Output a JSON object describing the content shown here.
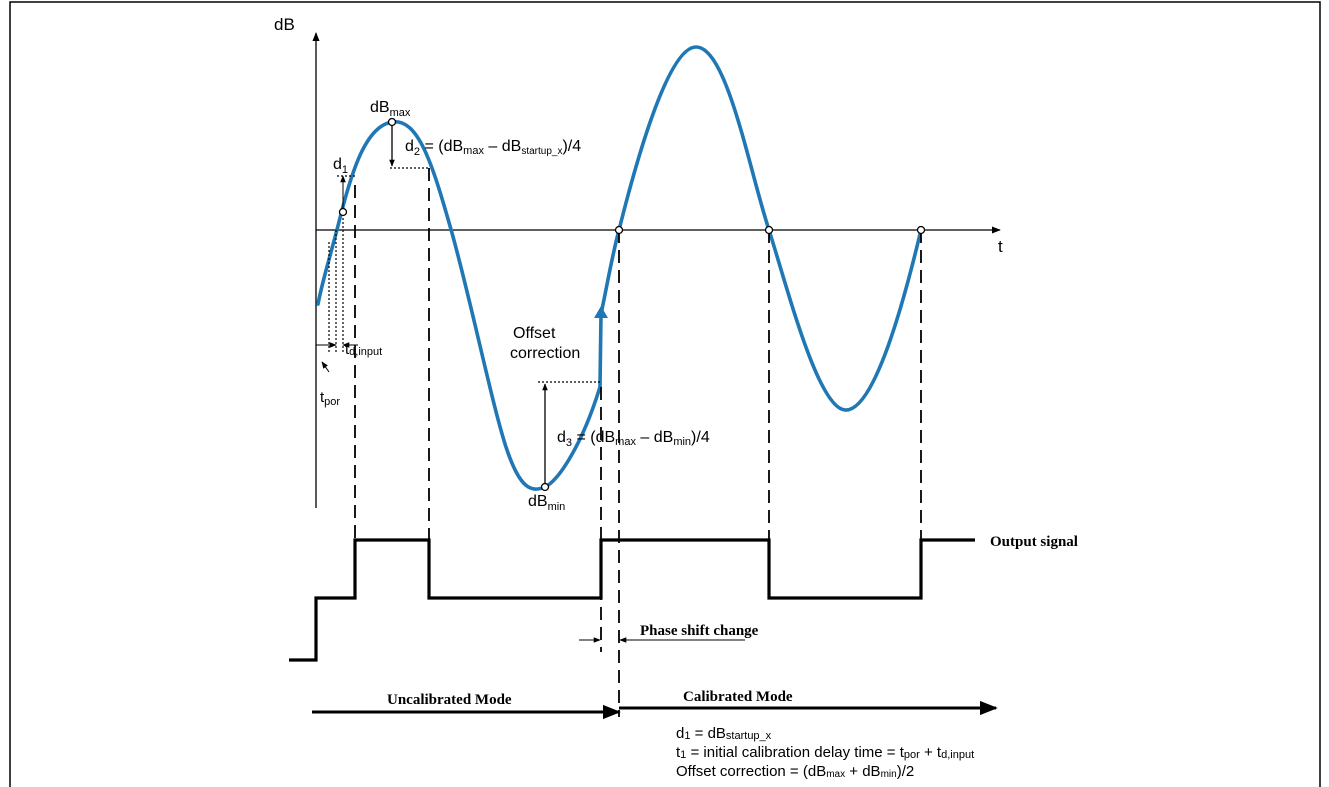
{
  "axes": {
    "y_label": "dB",
    "x_label": "t"
  },
  "annotations": {
    "dbmax": {
      "main": "dB",
      "sub": "max"
    },
    "dbmin": {
      "main": "dB",
      "sub": "min"
    },
    "d1": {
      "main": "d",
      "sub": "1"
    },
    "d2": {
      "lead": "d",
      "lead_sub": "2",
      "eq_open": " = (dB",
      "a_sub": "max",
      "minus": " – dB",
      "b_sub": "startup_x",
      "tail": ")/4"
    },
    "d3": {
      "lead": "d",
      "lead_sub": "3",
      "eq_open": " = (dB",
      "a_sub": "max",
      "minus": " – dB",
      "b_sub": "min",
      "tail": ")/4"
    },
    "td_input": {
      "main": "t",
      "sub": "d,input"
    },
    "tpor": {
      "main": "t",
      "sub": "por"
    },
    "offset_correction_line1": "Offset",
    "offset_correction_line2": "correction",
    "output_signal": "Output signal",
    "phase_shift_change": "Phase shift change",
    "uncalibrated_mode": "Uncalibrated Mode",
    "calibrated_mode": "Calibrated Mode"
  },
  "formulas": {
    "line1": {
      "a": "d",
      "a_sub": "1",
      "b": " = dB",
      "b_sub": "startup_x"
    },
    "line2": {
      "a": "t",
      "a_sub": "1",
      "b": " = initial calibration delay time = t",
      "b_sub": "por",
      "c": " + t",
      "c_sub": "d,input"
    },
    "line3": {
      "a": "Offset correction  = (dB",
      "a_sub": "max",
      "b": " + dB",
      "b_sub": "min",
      "c": ")/2"
    }
  },
  "colors": {
    "wave": "#1f77b4",
    "signal": "#000000",
    "background": "#ffffff"
  }
}
